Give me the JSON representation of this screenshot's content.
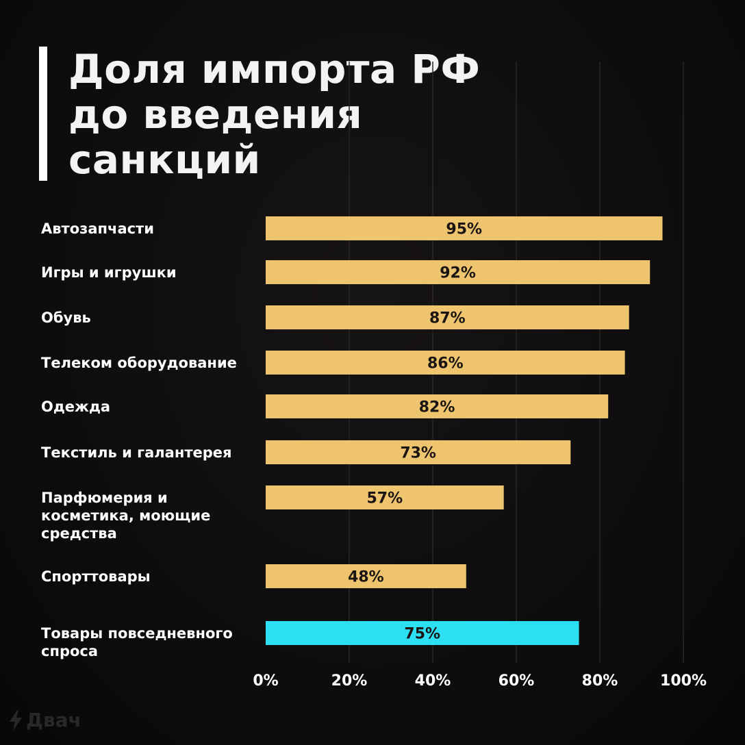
{
  "title_lines": [
    "Доля импорта РФ",
    "до введения",
    "санкций"
  ],
  "watermark": "Двач",
  "colors": {
    "bar": "#efc46f",
    "highlight": "#2ddff3",
    "background": "#0d0b0b",
    "grid": "#2b2626"
  },
  "chart_data": {
    "type": "bar",
    "orientation": "horizontal",
    "title": "Доля импорта РФ до введения санкций",
    "xlabel": "",
    "ylabel": "",
    "xlim": [
      0,
      100
    ],
    "grid": true,
    "x_ticks": [
      "0%",
      "20%",
      "40%",
      "60%",
      "80%",
      "100%"
    ],
    "categories": [
      [
        "Автозапчасти"
      ],
      [
        "Игры и игрушки"
      ],
      [
        "Обувь"
      ],
      [
        "Телеком оборудование"
      ],
      [
        "Одежда"
      ],
      [
        "Текстиль и галантерея"
      ],
      [
        "Парфюмерия и",
        "косметика, моющие",
        "средства"
      ],
      [
        "Спорттовары"
      ],
      [
        "Товары повседневного",
        "спроса"
      ]
    ],
    "values": [
      95,
      92,
      87,
      86,
      82,
      73,
      57,
      48,
      75
    ],
    "value_labels": [
      "95%",
      "92%",
      "87%",
      "86%",
      "82%",
      "73%",
      "57%",
      "48%",
      "75%"
    ],
    "highlight_index": 8
  }
}
